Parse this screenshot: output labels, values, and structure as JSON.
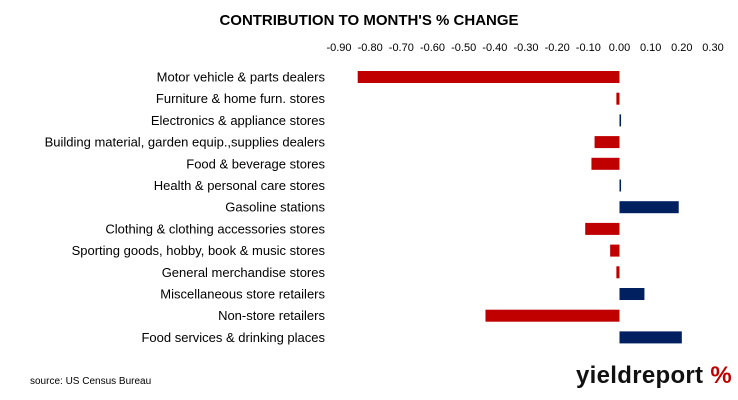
{
  "chart_data": {
    "type": "bar",
    "orientation": "horizontal",
    "title": "CONTRIBUTION TO MONTH'S % CHANGE",
    "xlim": [
      -0.9,
      0.3
    ],
    "xticks": [
      "-0.90",
      "-0.80",
      "-0.70",
      "-0.60",
      "-0.50",
      "-0.40",
      "-0.30",
      "-0.20",
      "-0.10",
      "0.00",
      "0.10",
      "0.20",
      "0.30"
    ],
    "tick_values": [
      -0.9,
      -0.8,
      -0.7,
      -0.6,
      -0.5,
      -0.4,
      -0.3,
      -0.2,
      -0.1,
      0.0,
      0.1,
      0.2,
      0.3
    ],
    "axis_position": "top",
    "grid": false,
    "categories": [
      "Motor vehicle & parts dealers",
      "Furniture & home furn. stores",
      "Electronics & appliance stores",
      "Building material, garden equip.,supplies dealers",
      "Food & beverage stores",
      "Health & personal care stores",
      "Gasoline stations",
      "Clothing & clothing accessories stores",
      "Sporting goods, hobby, book & music stores",
      "General merchandise stores",
      "Miscellaneous store retailers",
      "Non-store retailers",
      "Food services & drinking places"
    ],
    "values": [
      -0.84,
      -0.01,
      0.005,
      -0.08,
      -0.09,
      0.005,
      0.19,
      -0.11,
      -0.03,
      -0.01,
      0.08,
      -0.43,
      0.2
    ],
    "colors": {
      "negative": "#c00000",
      "positive": "#002060"
    }
  },
  "source": "source: US Census Bureau",
  "logo": {
    "main": "yieldreport",
    "symbol": "%"
  }
}
